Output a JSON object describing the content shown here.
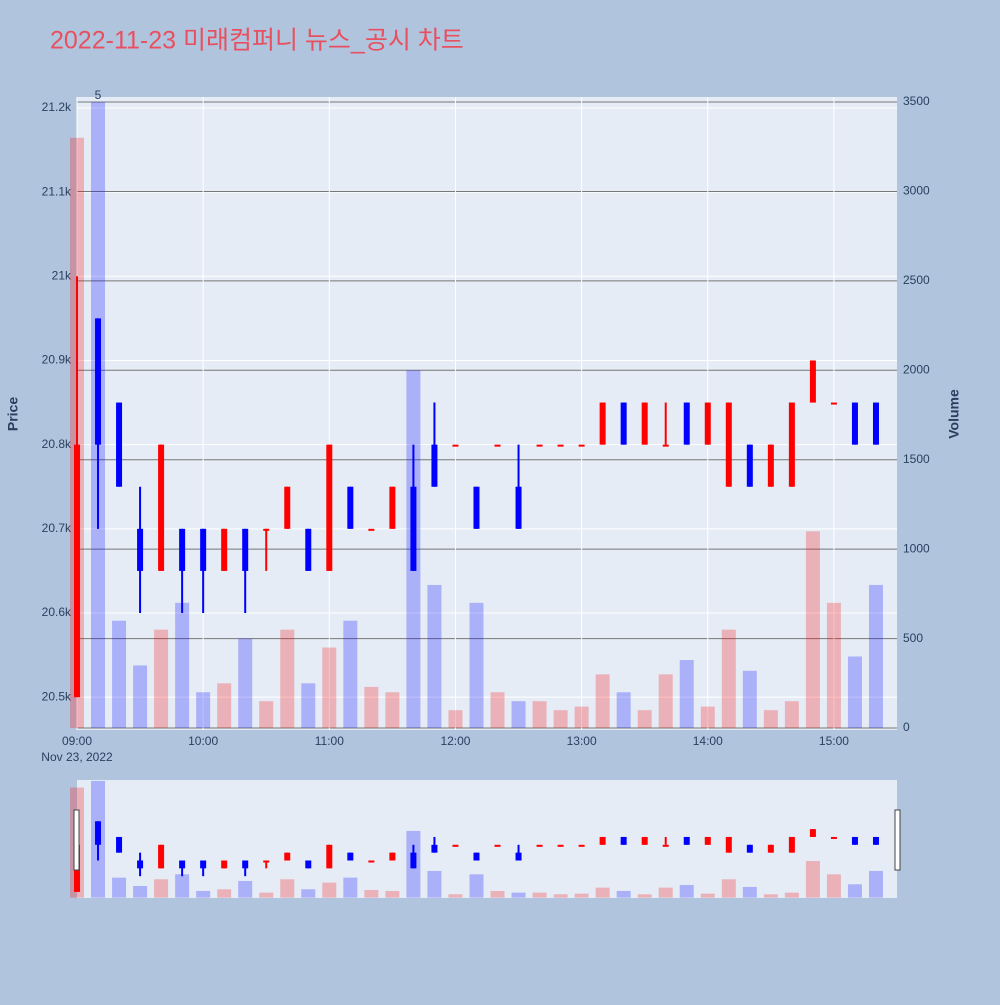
{
  "chart_data": {
    "type": "candlestick",
    "title": "2022-11-23 미래컴퍼니 뉴스_공시 차트",
    "y_label": "Price",
    "y2_label": "Volume",
    "annotation": "5",
    "x_date_label": "Nov 23, 2022",
    "increasing_color": "#ff0000",
    "decreasing_color": "#0000ff",
    "x": [
      "2022-11-23 09:00",
      "2022-11-23 09:10",
      "2022-11-23 09:20",
      "2022-11-23 09:30",
      "2022-11-23 09:40",
      "2022-11-23 09:50",
      "2022-11-23 10:00",
      "2022-11-23 10:10",
      "2022-11-23 10:20",
      "2022-11-23 10:30",
      "2022-11-23 10:40",
      "2022-11-23 10:50",
      "2022-11-23 11:00",
      "2022-11-23 11:10",
      "2022-11-23 11:20",
      "2022-11-23 11:30",
      "2022-11-23 11:40",
      "2022-11-23 11:50",
      "2022-11-23 12:00",
      "2022-11-23 12:10",
      "2022-11-23 12:20",
      "2022-11-23 12:30",
      "2022-11-23 12:40",
      "2022-11-23 12:50",
      "2022-11-23 13:00",
      "2022-11-23 13:10",
      "2022-11-23 13:20",
      "2022-11-23 13:30",
      "2022-11-23 13:40",
      "2022-11-23 13:50",
      "2022-11-23 14:00",
      "2022-11-23 14:10",
      "2022-11-23 14:20",
      "2022-11-23 14:30",
      "2022-11-23 14:40",
      "2022-11-23 14:50",
      "2022-11-23 15:00",
      "2022-11-23 15:10",
      "2022-11-23 15:20"
    ],
    "open": [
      20500,
      20950,
      20850,
      20700,
      20650,
      20700,
      20700,
      20650,
      20700,
      20700,
      20700,
      20700,
      20650,
      20750,
      20700,
      20700,
      20750,
      20800,
      20800,
      20750,
      20800,
      20750,
      20800,
      20800,
      20800,
      20800,
      20850,
      20800,
      20800,
      20850,
      20800,
      20750,
      20800,
      20750,
      20750,
      20850,
      20850,
      20850,
      20850
    ],
    "high": [
      21000,
      20950,
      20850,
      20750,
      20800,
      20700,
      20700,
      20700,
      20700,
      20700,
      20750,
      20700,
      20800,
      20750,
      20700,
      20750,
      20800,
      20850,
      20800,
      20750,
      20800,
      20800,
      20800,
      20800,
      20800,
      20850,
      20850,
      20850,
      20850,
      20850,
      20850,
      20850,
      20800,
      20800,
      20850,
      20900,
      20850,
      20850,
      20850
    ],
    "low": [
      20500,
      20700,
      20750,
      20600,
      20650,
      20600,
      20600,
      20650,
      20600,
      20650,
      20700,
      20650,
      20650,
      20700,
      20700,
      20700,
      20650,
      20750,
      20800,
      20700,
      20800,
      20700,
      20800,
      20800,
      20800,
      20800,
      20800,
      20800,
      20800,
      20800,
      20800,
      20750,
      20750,
      20750,
      20750,
      20850,
      20850,
      20800,
      20800
    ],
    "close": [
      20800,
      20800,
      20750,
      20650,
      20800,
      20650,
      20650,
      20700,
      20650,
      20700,
      20750,
      20650,
      20800,
      20700,
      20700,
      20750,
      20650,
      20750,
      20800,
      20700,
      20800,
      20700,
      20800,
      20800,
      20800,
      20850,
      20800,
      20850,
      20800,
      20800,
      20850,
      20850,
      20750,
      20800,
      20850,
      20900,
      20850,
      20800,
      20800
    ],
    "volume": [
      3300,
      3500,
      600,
      350,
      550,
      700,
      200,
      250,
      500,
      150,
      550,
      250,
      450,
      600,
      230,
      200,
      2000,
      800,
      100,
      700,
      200,
      150,
      150,
      100,
      120,
      300,
      200,
      100,
      300,
      380,
      120,
      550,
      320,
      100,
      150,
      1100,
      700,
      400,
      800
    ],
    "xlim": [
      "2022-11-23 09:00",
      "2022-11-23 15:30"
    ],
    "xticks": [
      {
        "value": "2022-11-23 09:00",
        "label": "09:00"
      },
      {
        "value": "2022-11-23 10:00",
        "label": "10:00"
      },
      {
        "value": "2022-11-23 11:00",
        "label": "11:00"
      },
      {
        "value": "2022-11-23 12:00",
        "label": "12:00"
      },
      {
        "value": "2022-11-23 13:00",
        "label": "13:00"
      },
      {
        "value": "2022-11-23 14:00",
        "label": "14:00"
      },
      {
        "value": "2022-11-23 15:00",
        "label": "15:00"
      }
    ],
    "ylim": [
      20461,
      21213
    ],
    "yticks": [
      {
        "value": 20500,
        "label": "20.5k"
      },
      {
        "value": 20600,
        "label": "20.6k"
      },
      {
        "value": 20700,
        "label": "20.7k"
      },
      {
        "value": 20800,
        "label": "20.8k"
      },
      {
        "value": 20900,
        "label": "20.9k"
      },
      {
        "value": 21000,
        "label": "21k"
      },
      {
        "value": 21100,
        "label": "21.1k"
      },
      {
        "value": 21200,
        "label": "21.2k"
      }
    ],
    "y2lim": [
      -11,
      3528
    ],
    "y2ticks": [
      0,
      500,
      1000,
      1500,
      2000,
      2500,
      3000,
      3500
    ],
    "rangeslider": true
  }
}
